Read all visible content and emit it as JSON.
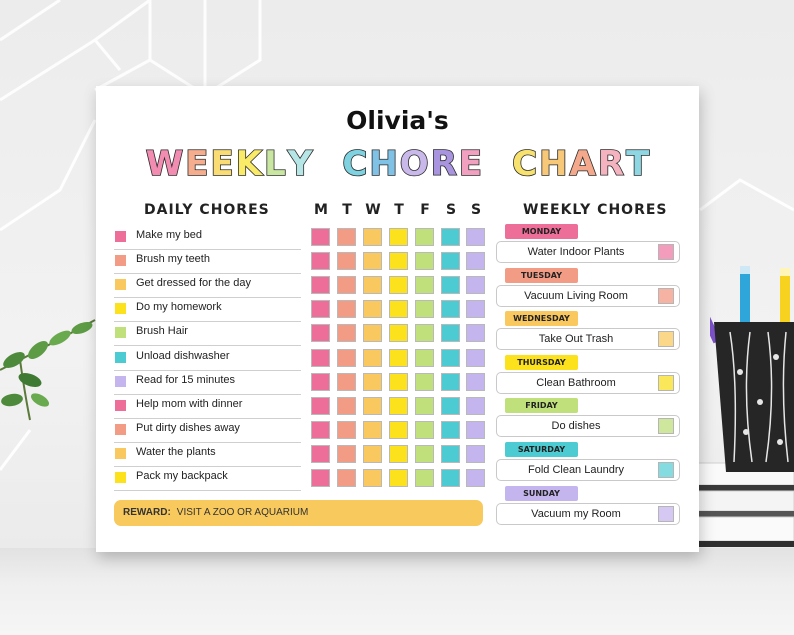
{
  "poster": {
    "name": "Olivia's",
    "title_words": [
      {
        "text": "WEEKLY",
        "colors": [
          "#f28cb1",
          "#f6ad8e",
          "#f9dc74",
          "#f9ea68",
          "#c9e7a1",
          "#b6e6e6"
        ]
      },
      {
        "text": "CHORE",
        "colors": [
          "#7fd2e0",
          "#7fc2e6",
          "#c9b8ea",
          "#a994e0",
          "#f2a0c0"
        ]
      },
      {
        "text": "CHART",
        "colors": [
          "#f8e26f",
          "#f6c877",
          "#f4a98c",
          "#f5b3c0",
          "#8fd6e3"
        ]
      }
    ],
    "daily_heading": "DAILY CHORES",
    "weekly_heading": "WEEKLY CHORES",
    "day_letters": [
      "M",
      "T",
      "W",
      "T",
      "F",
      "S",
      "S"
    ],
    "day_colors": [
      "#ee6e9a",
      "#f39c85",
      "#f9c85e",
      "#fbe21c",
      "#bfe07b",
      "#4dcbd2",
      "#c5b5ee"
    ],
    "daily_chores": [
      {
        "label": "Make my bed",
        "color": "#ee6e9a"
      },
      {
        "label": "Brush my teeth",
        "color": "#f39c85"
      },
      {
        "label": "Get dressed for the day",
        "color": "#f9c85e"
      },
      {
        "label": "Do my homework",
        "color": "#fbe21c"
      },
      {
        "label": "Brush Hair",
        "color": "#bfe07b"
      },
      {
        "label": "Unload dishwasher",
        "color": "#4dcbd2"
      },
      {
        "label": "Read for 15 minutes",
        "color": "#c5b5ee"
      },
      {
        "label": "Help mom with dinner",
        "color": "#ee6e9a"
      },
      {
        "label": "Put dirty dishes away",
        "color": "#f39c85"
      },
      {
        "label": "Water the plants",
        "color": "#f9c85e"
      },
      {
        "label": "Pack my backpack",
        "color": "#fbe21c"
      }
    ],
    "reward": {
      "label": "REWARD:",
      "text": "VISIT A ZOO OR AQUARIUM"
    },
    "weekly_chores": [
      {
        "day": "MONDAY",
        "task": "Water Indoor Plants",
        "color": "#ee6e9a",
        "box_color": "#f49cbc"
      },
      {
        "day": "TUESDAY",
        "task": "Vacuum Living Room",
        "color": "#f39c85",
        "box_color": "#f6b3a4"
      },
      {
        "day": "WEDNESDAY",
        "task": "Take Out Trash",
        "color": "#f9c85e",
        "box_color": "#fbd78a"
      },
      {
        "day": "THURSDAY",
        "task": "Clean Bathroom",
        "color": "#fbe21c",
        "box_color": "#fbe85a"
      },
      {
        "day": "FRIDAY",
        "task": "Do dishes",
        "color": "#bfe07b",
        "box_color": "#cfe79d"
      },
      {
        "day": "SATURDAY",
        "task": "Fold Clean Laundry",
        "color": "#4dcbd2",
        "box_color": "#84dce0"
      },
      {
        "day": "SUNDAY",
        "task": "Vacuum my Room",
        "color": "#c5b5ee",
        "box_color": "#d5c9f3"
      }
    ]
  }
}
